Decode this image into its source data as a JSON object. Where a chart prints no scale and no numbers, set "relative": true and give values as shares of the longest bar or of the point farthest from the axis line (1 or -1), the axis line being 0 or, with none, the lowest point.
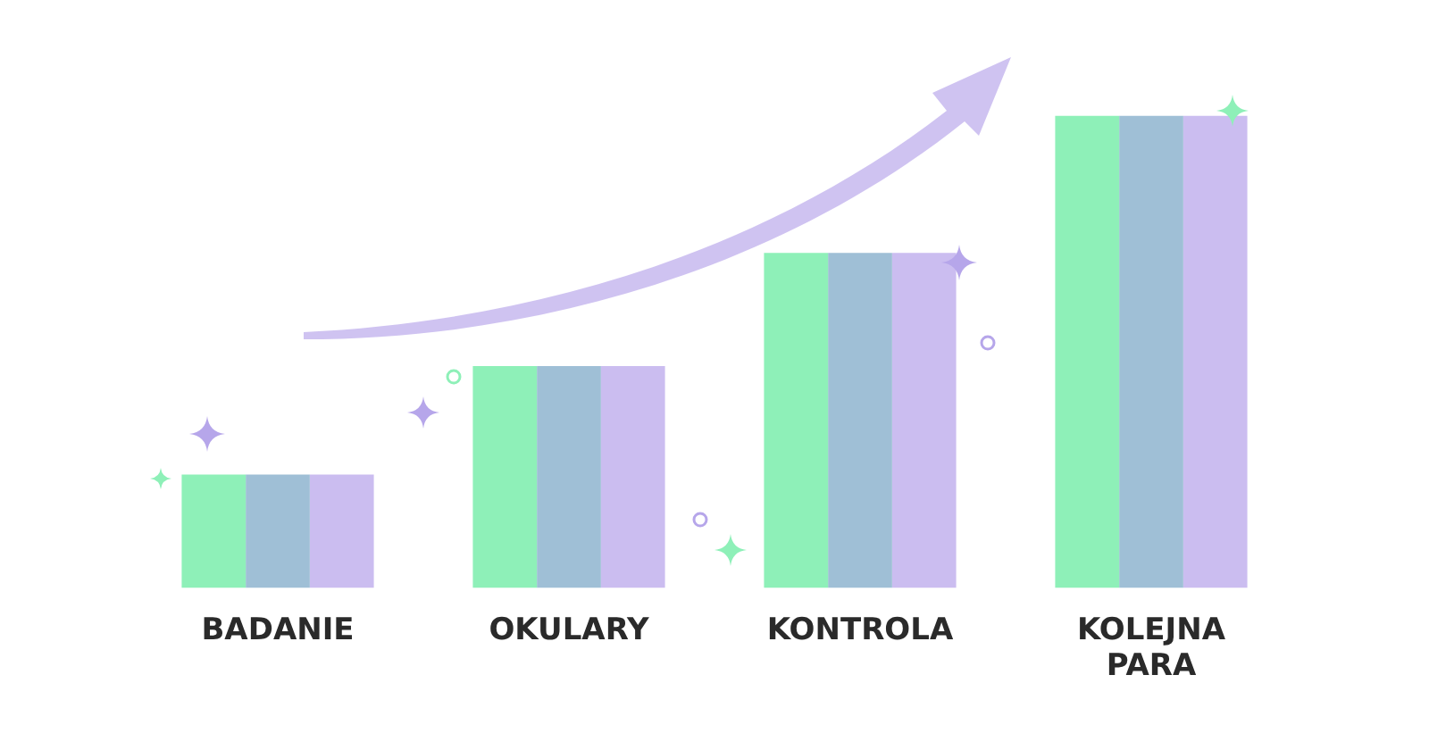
{
  "chart_data": {
    "type": "bar",
    "relative": true,
    "categories": [
      "BADANIE",
      "OKULARY",
      "KONTROLA",
      "KOLEJNA PARA"
    ],
    "series": [
      {
        "color": "#8ef0b8",
        "values": [
          0.24,
          0.47,
          0.71,
          1
        ]
      },
      {
        "color": "#9fbfd6",
        "values": [
          0.24,
          0.47,
          0.71,
          1
        ]
      },
      {
        "color": "#cbbdf0",
        "values": [
          0.24,
          0.47,
          0.71,
          1
        ]
      }
    ],
    "grid": false,
    "legend": false
  }
}
